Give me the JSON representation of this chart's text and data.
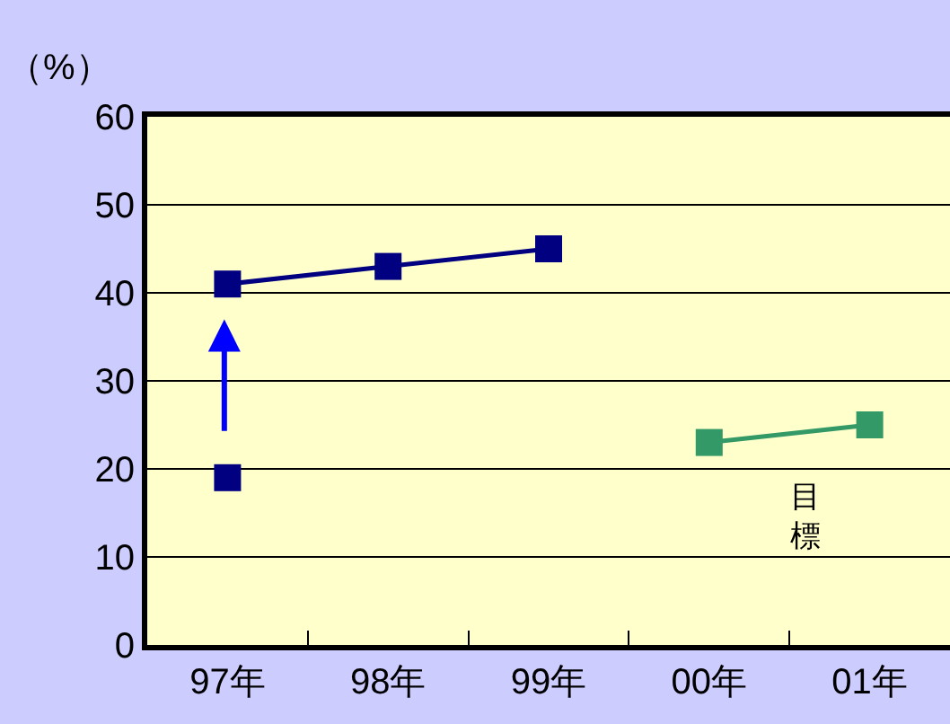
{
  "chart_data": {
    "type": "line",
    "ylabel": "（%）",
    "categories": [
      "97年",
      "98年",
      "99年",
      "00年",
      "01年"
    ],
    "series": [
      {
        "color": "#000080",
        "values": [
          41,
          43,
          45,
          null,
          null
        ]
      },
      {
        "type": "scatter",
        "color": "#000080",
        "values": [
          19,
          null,
          null,
          null,
          null
        ]
      },
      {
        "name": "目標",
        "color": "#339966",
        "values": [
          null,
          null,
          null,
          23,
          25
        ]
      }
    ],
    "ylim": [
      0,
      60
    ],
    "yticks": [
      0,
      10,
      20,
      30,
      40,
      50,
      60
    ],
    "grid": "y",
    "legend": false,
    "marker": "square"
  }
}
